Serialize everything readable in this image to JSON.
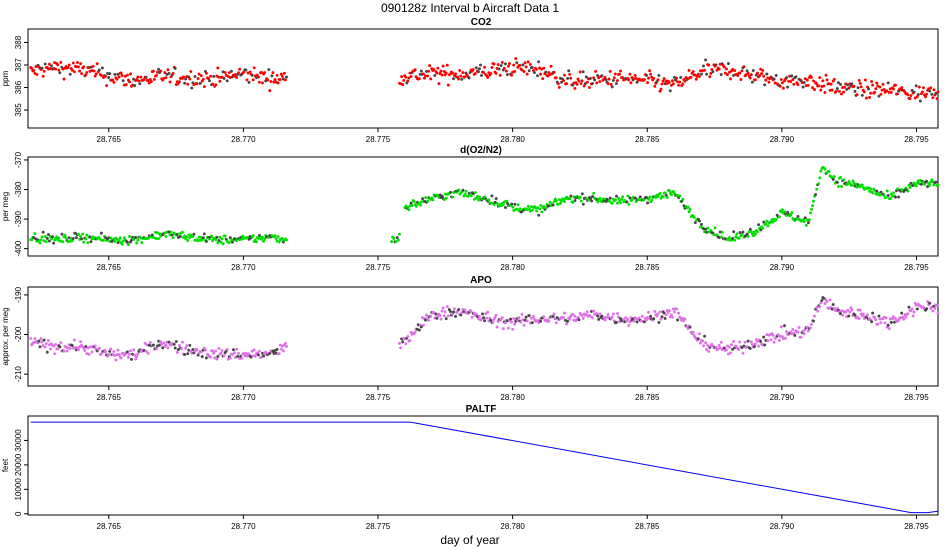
{
  "figure_title": "090128z   Interval b Aircraft Data 1",
  "x_axis_label": "day of year",
  "chart_data": [
    {
      "type": "scatter",
      "title": "CO2",
      "ylabel": "ppm",
      "color": "#ff0000",
      "xlim": [
        28.762,
        28.7958
      ],
      "ylim": [
        384.2,
        388.6
      ],
      "xticks": [
        "28.765",
        "28.770",
        "28.775",
        "28.780",
        "28.785",
        "28.790",
        "28.795"
      ],
      "yticks": [
        "385",
        "386",
        "387",
        "388"
      ],
      "segments": [
        {
          "x": [
            28.7621,
            28.763,
            28.764,
            28.765,
            28.766,
            28.767,
            28.768,
            28.769,
            28.77,
            28.771,
            28.7716
          ],
          "y": [
            386.7,
            386.9,
            386.8,
            386.5,
            386.3,
            386.5,
            386.4,
            386.4,
            386.6,
            386.4,
            386.4
          ]
        },
        {
          "x": [
            28.7758,
            28.777,
            28.778,
            28.779,
            28.78,
            28.781,
            28.782,
            28.783,
            28.784,
            28.785,
            28.786,
            28.787,
            28.788,
            28.789,
            28.79,
            28.791,
            28.792,
            28.793,
            28.794,
            28.795,
            28.7958
          ],
          "y": [
            386.5,
            386.6,
            386.6,
            386.7,
            386.9,
            386.8,
            386.3,
            386.3,
            386.4,
            386.3,
            386.1,
            386.7,
            386.8,
            386.5,
            386.3,
            386.3,
            386.0,
            385.9,
            385.9,
            385.7,
            385.9
          ]
        }
      ],
      "spread": 0.45
    },
    {
      "type": "scatter",
      "title": "d(O2/N2)",
      "ylabel": "per meg",
      "color": "#00e000",
      "xlim": [
        28.762,
        28.7958
      ],
      "ylim": [
        -402.5,
        -369
      ],
      "xticks": [
        "28.765",
        "28.770",
        "28.775",
        "28.780",
        "28.785",
        "28.790",
        "28.795"
      ],
      "yticks": [
        "-400",
        "-390",
        "-380",
        "-370"
      ],
      "segments": [
        {
          "x": [
            28.7621,
            28.763,
            28.764,
            28.765,
            28.766,
            28.767,
            28.768,
            28.769,
            28.77,
            28.771,
            28.7716
          ],
          "y": [
            -396,
            -397,
            -396,
            -397,
            -397,
            -395,
            -396,
            -397,
            -397,
            -396,
            -397
          ]
        },
        {
          "x": [
            28.7755,
            28.7758
          ],
          "y": [
            -397,
            -396
          ]
        },
        {
          "x": [
            28.776,
            28.777,
            28.778,
            28.779,
            28.78,
            28.781,
            28.782,
            28.783,
            28.784,
            28.785,
            28.786,
            28.787,
            28.788,
            28.789,
            28.79,
            28.791,
            28.7915,
            28.792,
            28.793,
            28.794,
            28.795,
            28.7958
          ],
          "y": [
            -386,
            -383,
            -381,
            -383,
            -386,
            -387,
            -383,
            -383,
            -384,
            -383,
            -381,
            -392,
            -397,
            -394,
            -388,
            -391,
            -372,
            -377,
            -379,
            -383,
            -378,
            -378
          ]
        }
      ],
      "spread": 1.7
    },
    {
      "type": "scatter",
      "title": "APO",
      "ylabel": "approx. per meg",
      "color": "#e070e8",
      "xlim": [
        28.762,
        28.7958
      ],
      "ylim": [
        -213,
        -188
      ],
      "xticks": [
        "28.765",
        "28.770",
        "28.775",
        "28.780",
        "28.785",
        "28.790",
        "28.795"
      ],
      "yticks": [
        "-210",
        "-200",
        "-190"
      ],
      "segments": [
        {
          "x": [
            28.7621,
            28.763,
            28.764,
            28.765,
            28.766,
            28.767,
            28.768,
            28.769,
            28.77,
            28.771,
            28.7716
          ],
          "y": [
            -202,
            -203,
            -203,
            -205,
            -205,
            -202,
            -204,
            -205,
            -205,
            -205,
            -203
          ]
        },
        {
          "x": [
            28.7758,
            28.777,
            28.778,
            28.779,
            28.78,
            28.781,
            28.782,
            28.783,
            28.784,
            28.785,
            28.786,
            28.787,
            28.788,
            28.789,
            28.79,
            28.791,
            28.7915,
            28.792,
            28.793,
            28.794,
            28.795,
            28.7958
          ],
          "y": [
            -203,
            -195,
            -194,
            -196,
            -197,
            -196,
            -196,
            -195,
            -196,
            -196,
            -194,
            -202,
            -204,
            -202,
            -200,
            -199,
            -191,
            -194,
            -195,
            -197,
            -193,
            -193
          ]
        }
      ],
      "spread": 1.8
    },
    {
      "type": "line",
      "title": "PALTF",
      "ylabel": "feet",
      "color": "#0000ff",
      "xlim": [
        28.762,
        28.7958
      ],
      "ylim": [
        -500,
        40000
      ],
      "xticks": [
        "28.765",
        "28.770",
        "28.775",
        "28.780",
        "28.785",
        "28.790",
        "28.795"
      ],
      "yticks": [
        "0",
        "10000",
        "20000",
        "30000"
      ],
      "x": [
        28.7621,
        28.7762,
        28.7948,
        28.7954,
        28.7958
      ],
      "y": [
        37500,
        37500,
        500,
        500,
        1000
      ]
    }
  ]
}
